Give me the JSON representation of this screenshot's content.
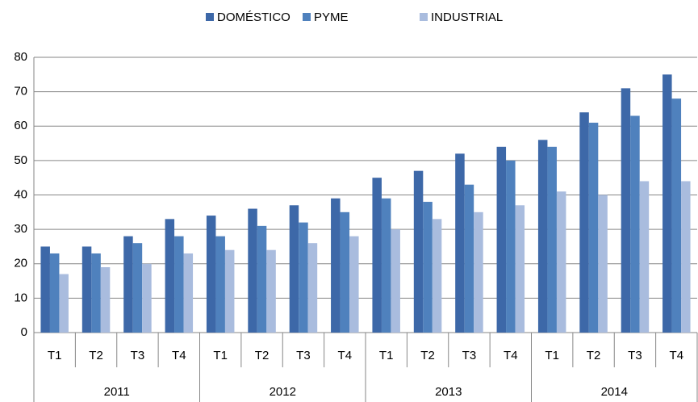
{
  "chart_data": {
    "type": "bar",
    "categories": [
      "T1",
      "T2",
      "T3",
      "T4",
      "T1",
      "T2",
      "T3",
      "T4",
      "T1",
      "T2",
      "T3",
      "T4",
      "T1",
      "T2",
      "T3",
      "T4"
    ],
    "category_groups": [
      "2011",
      "2012",
      "2013",
      "2014"
    ],
    "series": [
      {
        "name": "DOMÉSTICO",
        "color": "#3d68a8",
        "values": [
          25,
          25,
          28,
          33,
          34,
          36,
          37,
          39,
          45,
          47,
          52,
          54,
          56,
          64,
          71,
          75
        ]
      },
      {
        "name": "PYME",
        "color": "#4f81bd",
        "values": [
          23,
          23,
          26,
          28,
          28,
          31,
          32,
          35,
          39,
          38,
          43,
          50,
          54,
          61,
          63,
          68
        ]
      },
      {
        "name": "INDUSTRIAL",
        "color": "#a9bcde",
        "values": [
          17,
          19,
          20,
          23,
          24,
          24,
          26,
          28,
          30,
          33,
          35,
          37,
          41,
          40,
          44,
          44
        ]
      }
    ],
    "ylim": [
      0,
      80
    ],
    "yticks": [
      0,
      10,
      20,
      30,
      40,
      50,
      60,
      70,
      80
    ],
    "grid": true,
    "legend": "top"
  }
}
